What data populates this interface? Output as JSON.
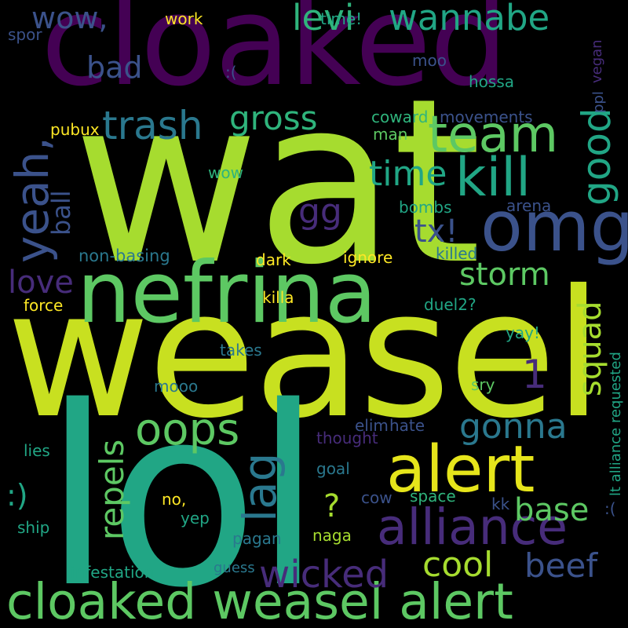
{
  "palette": {
    "background": "#000000",
    "yellow": "#e6e51b",
    "lime": "#a6dc2f",
    "green": "#5dc863",
    "teal": "#21a685",
    "cyan": "#2a788e",
    "blue": "#3b528b",
    "indigo": "#472c7a",
    "purple": "#440154"
  },
  "words": {
    "cloaked": "cloaked",
    "wat": "wat",
    "weasel": "weasel",
    "lol": "lol",
    "nefrina": "nefrina",
    "omg": "omg",
    "alert": "alert",
    "alliance": "alliance",
    "cloaked_weasel_alert": "cloaked weasel alert",
    "team": "team",
    "kill": "kill",
    "trash": "trash",
    "good": "good",
    "yeah": "yeah,",
    "wannabe": "wannabe",
    "levi": "levi",
    "wow_comma": "wow,",
    "gross": "gross",
    "bad": "bad",
    "time": "time",
    "oops": "oops",
    "gonna": "gonna",
    "lag": "lag",
    "wicked": "wicked",
    "cool": "cool",
    "beef": "beef",
    "base": "base",
    "squad": "squad",
    "storm": "storm",
    "repels": "repels",
    "ball": "ball",
    "love": "love",
    "gg": "gg",
    "tx": "tx!",
    "smiley": ":)",
    "question": "?",
    "one": "1",
    "non_basing": "non-basing",
    "work": "work",
    "time_excl": "time!",
    "spor": "spor",
    "frown": ":(",
    "moo": "moo",
    "hossa": "hossa",
    "vegan": "vegan",
    "ppl": "ppl",
    "pubux": "pubux",
    "coward": "coward",
    "movements": "movements",
    "man": "man",
    "wow": "wow",
    "arena": "arena",
    "bombs": "bombs",
    "dark": "dark",
    "ignore": "ignore",
    "killed": "killed",
    "force": "force",
    "killa": "killa",
    "duel2": "duel2?",
    "lt_alliance_requested": "lt alliance requested",
    "yay": "yay!",
    "takes": "takes",
    "mooo": "mooo",
    "sry": "sry",
    "elim": "elim",
    "hate": "hate",
    "thought": "thought",
    "lies": "lies",
    "goal": "goal",
    "cow": "cow",
    "space": "space",
    "kk": "kk",
    "frown2": ":(",
    "no": "no,",
    "yep": "yep",
    "ship": "ship",
    "pagan": "pagan",
    "naga": "naga",
    "infestation": "infestation",
    "guess": "guess"
  }
}
